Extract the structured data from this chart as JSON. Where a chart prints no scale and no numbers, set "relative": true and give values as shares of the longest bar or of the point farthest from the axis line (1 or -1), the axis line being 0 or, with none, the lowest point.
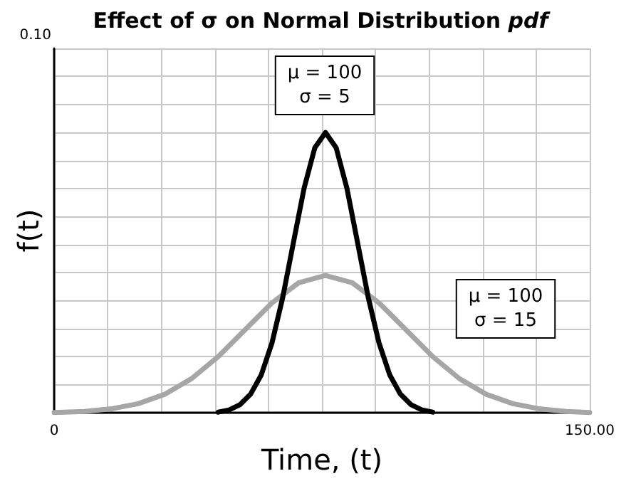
{
  "chart_data": {
    "type": "line",
    "title": "Effect of σ on Normal Distribution pdf",
    "xlabel": "Time, (t)",
    "ylabel": "f(t)",
    "xlim": [
      0,
      150
    ],
    "xticks": [
      0,
      {
        "value": 15,
        "label": null
      },
      {
        "value": 30,
        "label": null
      },
      {
        "value": 45,
        "label": null
      },
      {
        "value": 60,
        "label": null
      },
      {
        "value": 75,
        "label": null
      },
      {
        "value": 90,
        "label": null
      },
      {
        "value": 105,
        "label": null
      },
      {
        "value": 120,
        "label": null
      },
      {
        "value": 135,
        "label": null
      },
      {
        "value": 150,
        "label": "150.00"
      }
    ],
    "relative": true,
    "grid": true,
    "marker": "none",
    "line_style": "solid",
    "series": [
      {
        "color": "#a6a6a6",
        "x": [
          0,
          8.5,
          16,
          23.5,
          31,
          38.5,
          46,
          53.5,
          61,
          68.5,
          76,
          83.5,
          91,
          98.5,
          106,
          113.5,
          121,
          128.5,
          136,
          143.5,
          150
        ],
        "values": [
          0.0013,
          0.0052,
          0.0143,
          0.0325,
          0.0662,
          0.122,
          0.201,
          0.297,
          0.392,
          0.464,
          0.49,
          0.464,
          0.392,
          0.297,
          0.201,
          0.122,
          0.0662,
          0.0325,
          0.0143,
          0.0052,
          0.0013
        ]
      },
      {
        "color": "#000000",
        "x": [
          46,
          49,
          52,
          55,
          58,
          61,
          64,
          67,
          70,
          73,
          76,
          79,
          82,
          85,
          88,
          91,
          94,
          97,
          100,
          103,
          106
        ],
        "values": [
          0.0026,
          0.0104,
          0.0286,
          0.0662,
          0.135,
          0.249,
          0.41,
          0.606,
          0.801,
          0.945,
          1,
          0.945,
          0.801,
          0.606,
          0.41,
          0.249,
          0.135,
          0.0662,
          0.0286,
          0.0104,
          0.0026
        ]
      }
    ],
    "annotations": [
      "0.10",
      "μ = 100\nσ = 5",
      "μ = 100\nσ = 15"
    ]
  }
}
